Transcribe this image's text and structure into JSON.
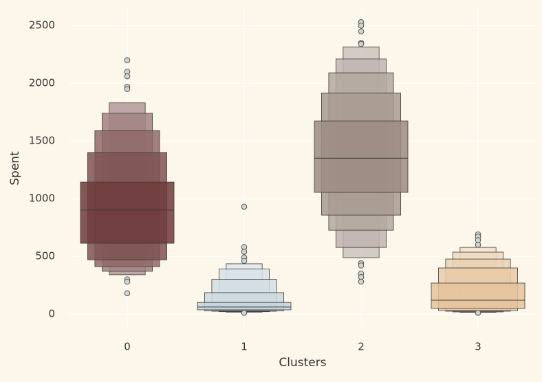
{
  "chart_data": {
    "type": "boxen",
    "xlabel": "Clusters",
    "ylabel": "Spent",
    "categories": [
      "0",
      "1",
      "2",
      "3"
    ],
    "ylim": [
      -125,
      2650
    ],
    "yticks": [
      0,
      500,
      1000,
      1500,
      2000,
      2500
    ],
    "grid": true,
    "boxes": [
      {
        "color": "#6e3b3b",
        "median": 900,
        "levels": [
          [
            613,
            1143
          ],
          [
            470,
            1400
          ],
          [
            410,
            1590
          ],
          [
            370,
            1740
          ],
          [
            340,
            1830
          ]
        ],
        "outliers": [
          2200,
          2100,
          2060,
          1970,
          1950,
          300,
          280,
          180
        ]
      },
      {
        "color": "#c4d4dc",
        "median": 60,
        "levels": [
          [
            36,
            100
          ],
          [
            28,
            185
          ],
          [
            24,
            300
          ],
          [
            20,
            390
          ],
          [
            16,
            435
          ]
        ],
        "outliers": [
          930,
          580,
          540,
          490,
          460,
          10
        ]
      },
      {
        "color": "#9c8c82",
        "median": 1350,
        "levels": [
          [
            1054,
            1673
          ],
          [
            857,
            1916
          ],
          [
            726,
            2090
          ],
          [
            577,
            2210
          ],
          [
            488,
            2315
          ]
        ],
        "outliers": [
          2530,
          2500,
          2450,
          2350,
          2340,
          440,
          420,
          350,
          320,
          280
        ]
      },
      {
        "color": "#e6c39c",
        "median": 119,
        "levels": [
          [
            48,
            268
          ],
          [
            30,
            399
          ],
          [
            24,
            476
          ],
          [
            18,
            536
          ],
          [
            14,
            577
          ]
        ],
        "outliers": [
          690,
          670,
          640,
          600,
          10
        ]
      }
    ]
  }
}
